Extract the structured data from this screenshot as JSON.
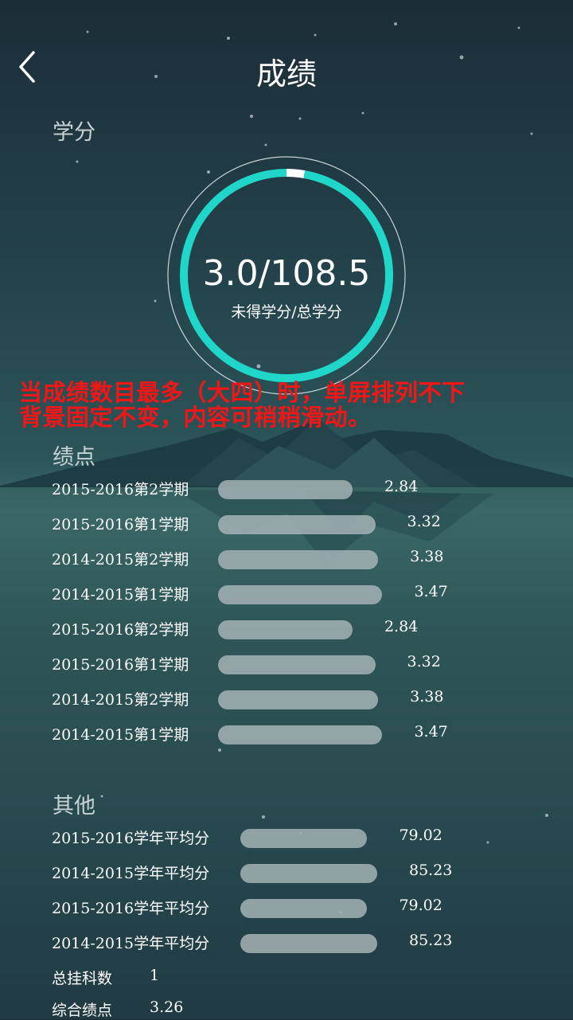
{
  "header": {
    "title": "成绩"
  },
  "credits": {
    "section_title": "学分",
    "value_text": "3.0/108.5",
    "label": "未得学分/总学分",
    "earned_fraction": 0.9724
  },
  "notice": {
    "line1": "当成绩数目最多（大四）时，单屏排列不下",
    "line2": "背景固定不变，内容可稍稍滑动。"
  },
  "gpa": {
    "section_title": "绩点",
    "max": 4.0,
    "rows": [
      {
        "term": "2015-2016第2学期",
        "value": "2.84"
      },
      {
        "term": "2015-2016第1学期",
        "value": "3.32"
      },
      {
        "term": "2014-2015第2学期",
        "value": "3.38"
      },
      {
        "term": "2014-2015第1学期",
        "value": "3.47"
      },
      {
        "term": "2015-2016第2学期",
        "value": "2.84"
      },
      {
        "term": "2015-2016第1学期",
        "value": "3.32"
      },
      {
        "term": "2014-2015第2学期",
        "value": "3.38"
      },
      {
        "term": "2014-2015第1学期",
        "value": "3.47"
      }
    ]
  },
  "other": {
    "section_title": "其他",
    "rows": [
      {
        "label": "2015-2016学年平均分",
        "value": "79.02"
      },
      {
        "label": "2014-2015学年平均分",
        "value": "85.23"
      },
      {
        "label": "2015-2016学年平均分",
        "value": "79.02"
      },
      {
        "label": "2014-2015学年平均分",
        "value": "85.23"
      }
    ],
    "failed_label": "总挂科数",
    "failed_value": "1",
    "overall_label": "综合绩点",
    "overall_value": "3.26"
  },
  "colors": {
    "ring": "#1fd6c9",
    "ring_remaining": "#ffffff",
    "notice": "#f21616"
  }
}
